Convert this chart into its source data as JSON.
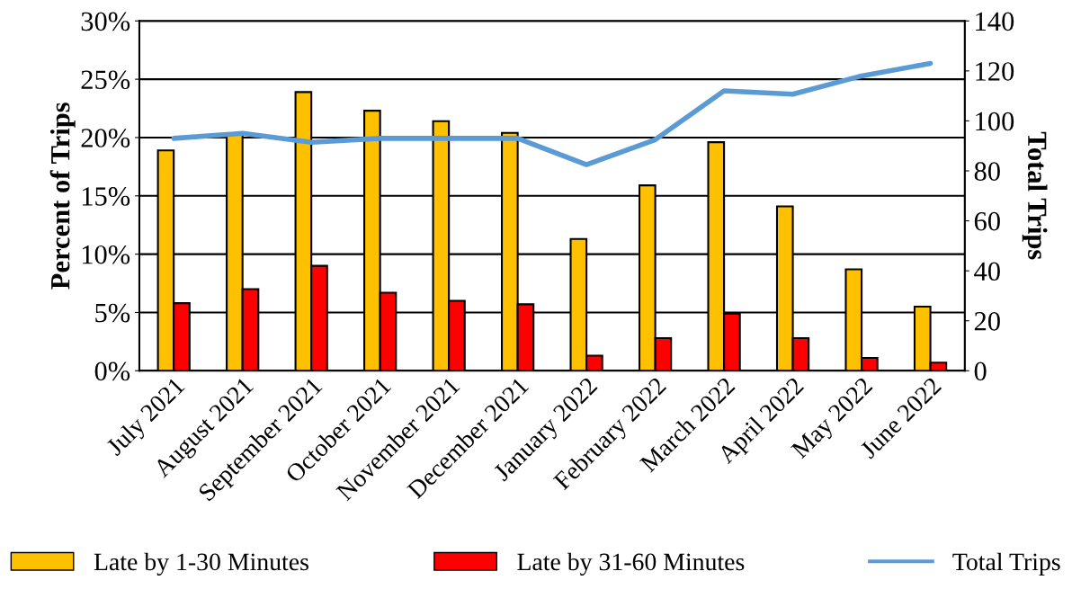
{
  "chart_data": {
    "type": "bar",
    "categories": [
      "July 2021",
      "August 2021",
      "September 2021",
      "October 2021",
      "November 2021",
      "December 2021",
      "January 2022",
      "February 2022",
      "March 2022",
      "April 2022",
      "May 2022",
      "June 2022"
    ],
    "series": [
      {
        "name": "Late by 1-30 Minutes",
        "color": "#ffc000",
        "values": [
          18.9,
          20.3,
          23.9,
          22.3,
          21.4,
          20.4,
          11.3,
          15.9,
          19.6,
          14.1,
          8.7,
          5.5
        ]
      },
      {
        "name": "Late by 31-60 Minutes",
        "color": "#ff0000",
        "values": [
          5.8,
          7.0,
          9.0,
          6.7,
          6.0,
          5.7,
          1.3,
          2.8,
          4.9,
          2.8,
          1.1,
          0.7
        ]
      },
      {
        "name": "Total Trips",
        "type": "line",
        "axis": "y2",
        "color": "#5b9bd5",
        "values": [
          93,
          95,
          91.4,
          93,
          93,
          93,
          82.5,
          92.5,
          112,
          110.7,
          118,
          123
        ]
      }
    ],
    "ylabel": "Percent of Trips",
    "y2label": "Total Trips",
    "ylim": [
      0,
      30
    ],
    "yticks": [
      {
        "value": 0,
        "label": "0%"
      },
      {
        "value": 5,
        "label": "5%"
      },
      {
        "value": 10,
        "label": "10%"
      },
      {
        "value": 15,
        "label": "15%"
      },
      {
        "value": 20,
        "label": "20%"
      },
      {
        "value": 25,
        "label": "25%"
      },
      {
        "value": 30,
        "label": "30%"
      }
    ],
    "y2lim": [
      0,
      140
    ],
    "y2ticks": [
      0,
      20,
      40,
      60,
      80,
      100,
      120,
      140
    ],
    "grid": "y",
    "legend": "bottom"
  }
}
